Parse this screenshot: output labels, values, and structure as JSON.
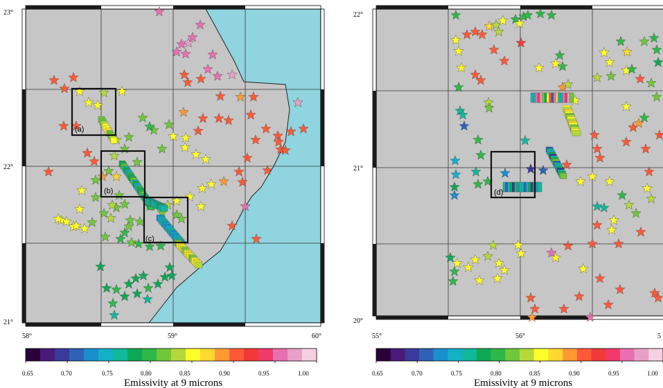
{
  "colors": {
    "land": "#c6c6c6",
    "sea": "#8fd4df",
    "frame_dark": "#1a1a1a",
    "star_outline": "#333333"
  },
  "maps": [
    {
      "lon_ticks": [
        "58°",
        "59°",
        "60°"
      ],
      "lat_ticks": [
        "21°",
        "22°",
        "23°"
      ],
      "boxes": [
        "(a)",
        "(b)",
        "(c)"
      ],
      "colorbar": {
        "ticks": [
          "0.65",
          "0.70",
          "0.75",
          "0.80",
          "0.85",
          "0.90",
          "0.95",
          "1.00"
        ],
        "label": "Emissivity at 9 microns"
      }
    },
    {
      "lon_ticks": [
        "55°",
        "56°",
        "5"
      ],
      "lat_ticks": [
        "20°",
        "21°",
        "22°"
      ],
      "boxes": [
        "(d)"
      ],
      "colorbar": {
        "ticks": [
          "0.65",
          "0.70",
          "0.75",
          "0.80",
          "0.85",
          "0.90",
          "0.95",
          "1.00"
        ],
        "label": "Emissivity at 9 microns"
      }
    }
  ],
  "colorbar_colors": [
    "#2a0038",
    "#4a1a78",
    "#3a3a9a",
    "#2f62b6",
    "#1a8fcd",
    "#14b0c8",
    "#12b89a",
    "#0fa855",
    "#2fb848",
    "#6fc83a",
    "#b7d83a",
    "#ffff2a",
    "#ffd830",
    "#ff9a32",
    "#ff5a38",
    "#f03a3a",
    "#f03a6a",
    "#e870b0",
    "#e8a0c8",
    "#f4d0e0"
  ]
}
